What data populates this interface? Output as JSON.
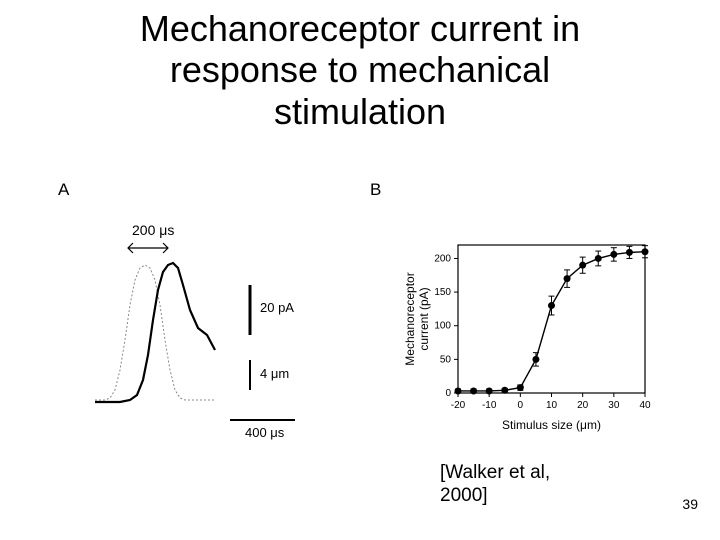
{
  "title": {
    "line1": "Mechanoreceptor current in",
    "line2": "response to mechanical",
    "line3": "stimulation"
  },
  "panelA": {
    "label": "A",
    "time_offset_label": "200 μs",
    "scale_current": "20 pA",
    "scale_displacement": "4 μm",
    "scale_time": "400 μs",
    "traces": {
      "stimulus_dotted": [
        {
          "x": 0,
          "y": 150
        },
        {
          "x": 10,
          "y": 150
        },
        {
          "x": 15,
          "y": 148
        },
        {
          "x": 20,
          "y": 140
        },
        {
          "x": 25,
          "y": 120
        },
        {
          "x": 30,
          "y": 90
        },
        {
          "x": 35,
          "y": 55
        },
        {
          "x": 40,
          "y": 30
        },
        {
          "x": 45,
          "y": 18
        },
        {
          "x": 50,
          "y": 15
        },
        {
          "x": 55,
          "y": 18
        },
        {
          "x": 60,
          "y": 30
        },
        {
          "x": 65,
          "y": 55
        },
        {
          "x": 70,
          "y": 90
        },
        {
          "x": 75,
          "y": 120
        },
        {
          "x": 80,
          "y": 140
        },
        {
          "x": 85,
          "y": 148
        },
        {
          "x": 90,
          "y": 150
        },
        {
          "x": 100,
          "y": 150
        },
        {
          "x": 120,
          "y": 150
        }
      ],
      "response_solid": [
        {
          "x": 0,
          "y": 152
        },
        {
          "x": 25,
          "y": 152
        },
        {
          "x": 35,
          "y": 150
        },
        {
          "x": 42,
          "y": 145
        },
        {
          "x": 48,
          "y": 130
        },
        {
          "x": 53,
          "y": 105
        },
        {
          "x": 58,
          "y": 70
        },
        {
          "x": 63,
          "y": 40
        },
        {
          "x": 68,
          "y": 22
        },
        {
          "x": 73,
          "y": 15
        },
        {
          "x": 78,
          "y": 13
        },
        {
          "x": 83,
          "y": 18
        },
        {
          "x": 88,
          "y": 35
        },
        {
          "x": 95,
          "y": 60
        },
        {
          "x": 103,
          "y": 78
        },
        {
          "x": 112,
          "y": 85
        },
        {
          "x": 120,
          "y": 100
        }
      ],
      "dotted_color": "#888888",
      "solid_color": "#000000",
      "solid_width": 2.2,
      "dotted_width": 1
    }
  },
  "panelB": {
    "label": "B",
    "ylabel_line1": "Mechanoreceptor",
    "ylabel_line2": "current (pA)",
    "xlabel": "Stimulus size (μm)",
    "xlim": [
      -20,
      40
    ],
    "ylim": [
      0,
      220
    ],
    "xticks": [
      -20,
      -10,
      0,
      10,
      20,
      30,
      40
    ],
    "yticks": [
      0,
      50,
      100,
      150,
      200
    ],
    "data": [
      {
        "x": -20,
        "y": 3,
        "err": 3
      },
      {
        "x": -15,
        "y": 3,
        "err": 3
      },
      {
        "x": -10,
        "y": 3,
        "err": 3
      },
      {
        "x": -5,
        "y": 4,
        "err": 3
      },
      {
        "x": 0,
        "y": 8,
        "err": 4
      },
      {
        "x": 5,
        "y": 50,
        "err": 10
      },
      {
        "x": 10,
        "y": 130,
        "err": 14
      },
      {
        "x": 15,
        "y": 170,
        "err": 13
      },
      {
        "x": 20,
        "y": 190,
        "err": 12
      },
      {
        "x": 25,
        "y": 200,
        "err": 11
      },
      {
        "x": 30,
        "y": 206,
        "err": 10
      },
      {
        "x": 35,
        "y": 209,
        "err": 9
      },
      {
        "x": 40,
        "y": 210,
        "err": 9
      }
    ],
    "marker_radius": 3.5,
    "marker_color": "#000000",
    "line_color": "#000000",
    "line_width": 1.4,
    "background": "#ffffff",
    "axis_color": "#000000"
  },
  "citation": {
    "line1": "[Walker et al,",
    "line2": "2000]"
  },
  "page_number": "39"
}
